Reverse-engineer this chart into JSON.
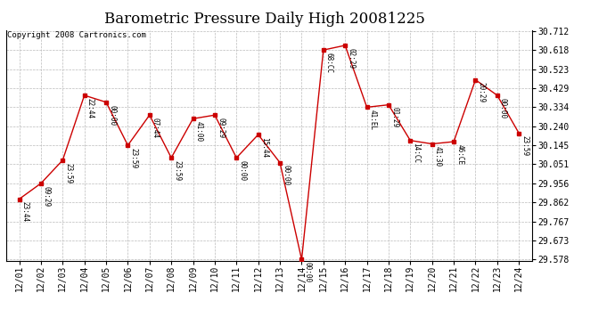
{
  "title": "Barometric Pressure Daily High 20081225",
  "copyright": "Copyright 2008 Cartronics.com",
  "x_labels": [
    "12/01",
    "12/02",
    "12/03",
    "12/04",
    "12/05",
    "12/06",
    "12/07",
    "12/08",
    "12/09",
    "12/10",
    "12/11",
    "12/12",
    "12/13",
    "12/14",
    "12/15",
    "12/16",
    "12/17",
    "12/18",
    "12/19",
    "12/20",
    "12/21",
    "12/22",
    "12/23",
    "12/24"
  ],
  "y_values": [
    29.878,
    29.956,
    30.071,
    30.393,
    30.359,
    30.145,
    30.295,
    30.083,
    30.277,
    30.295,
    30.083,
    30.198,
    30.059,
    29.578,
    30.618,
    30.641,
    30.334,
    30.346,
    30.169,
    30.152,
    30.163,
    30.47,
    30.393,
    30.205
  ],
  "point_times": [
    "23:44",
    "09:29",
    "23:59",
    "22:44",
    "00:00",
    "23:59",
    "07:44",
    "23:59",
    "41:00",
    "09:29",
    "00:00",
    "15:44",
    "00:00",
    "00:00",
    "68:CC",
    "02:29",
    "41:EL",
    "01:29",
    "14:CC",
    "41:30",
    "46:CE",
    "20:29",
    "00:00",
    "23:59"
  ],
  "y_ticks": [
    29.578,
    29.673,
    29.767,
    29.862,
    29.956,
    30.051,
    30.145,
    30.24,
    30.334,
    30.429,
    30.523,
    30.618,
    30.712
  ],
  "line_color": "#cc0000",
  "marker_color": "#cc0000",
  "bg_color": "#ffffff",
  "grid_color": "#bbbbbb",
  "title_fontsize": 12,
  "copyright_fontsize": 6.5,
  "tick_fontsize": 7,
  "annot_fontsize": 5.5
}
